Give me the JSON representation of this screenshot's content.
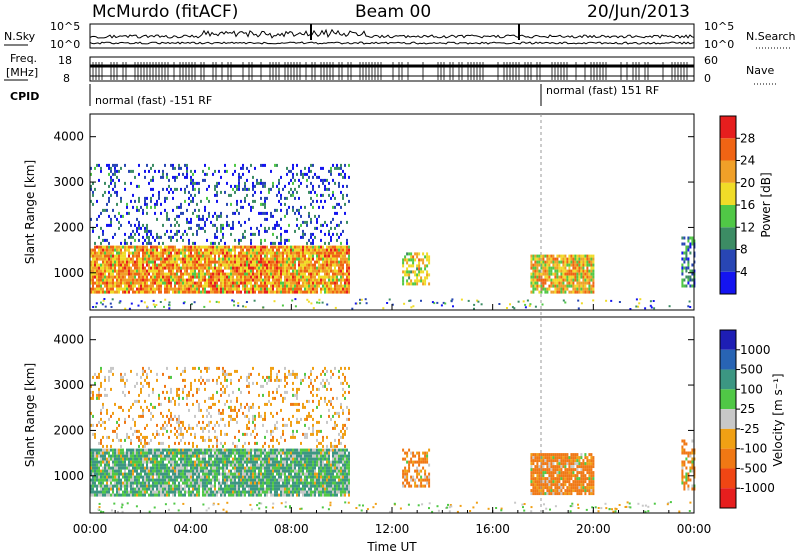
{
  "header": {
    "station": "McMurdo (fitACF)",
    "beam": "Beam 00",
    "date": "20/Jun/2013"
  },
  "noise_panel": {
    "left_label": "N.Sky",
    "right_label": "N.Search",
    "left_ticks": [
      "10^5",
      "10^0"
    ],
    "right_ticks": [
      "10^5",
      "10^0"
    ]
  },
  "freq_panel": {
    "left_label_line1": "Freq.",
    "left_label_line2": "[MHz]",
    "right_label": "Nave",
    "left_ticks": [
      "18",
      "8"
    ],
    "right_ticks": [
      "60",
      "0"
    ]
  },
  "cpid_panel": {
    "label": "CPID",
    "segment1": "normal (fast) -151 RF",
    "segment2": "normal (fast) 151 RF"
  },
  "time_axis": {
    "label": "Time UT",
    "ticks": [
      "00:00",
      "04:00",
      "08:00",
      "12:00",
      "16:00",
      "20:00",
      "00:00"
    ]
  },
  "colors": {
    "power_scale": [
      "#1414f0",
      "#2846b4",
      "#3c8c64",
      "#50c846",
      "#f0dc28",
      "#f0a028",
      "#f06414",
      "#e61e1e"
    ],
    "velocity_scale": [
      "#1e1eb4",
      "#2864b4",
      "#3c9682",
      "#50c846",
      "#c8c8c8",
      "#f0a014",
      "#f07814",
      "#f04614",
      "#e61e1e"
    ]
  },
  "chart_data": [
    {
      "type": "heatmap",
      "title": "",
      "xlabel": "Time UT",
      "ylabel": "Slant Range [km]",
      "xlim": [
        "00:00",
        "24:00"
      ],
      "ylim": [
        180,
        4500
      ],
      "y_ticks": [
        1000,
        2000,
        3000,
        4000
      ],
      "colorbar": {
        "label": "Power [dB]",
        "range": [
          0,
          32
        ],
        "ticks": [
          4,
          8,
          12,
          16,
          20,
          24,
          28
        ]
      },
      "regions": [
        {
          "t_start": 0.0,
          "t_end": 10.3,
          "r_start": 600,
          "r_end": 1600,
          "value": 22
        },
        {
          "t_start": 0.0,
          "t_end": 10.3,
          "r_start": 1650,
          "r_end": 3400,
          "value": 6
        },
        {
          "t_start": 12.4,
          "t_end": 13.5,
          "r_start": 750,
          "r_end": 1450,
          "value": 18
        },
        {
          "t_start": 17.5,
          "t_end": 20.0,
          "r_start": 600,
          "r_end": 1400,
          "value": 20
        },
        {
          "t_start": 23.5,
          "t_end": 24.0,
          "r_start": 700,
          "r_end": 1800,
          "value": 8
        }
      ]
    },
    {
      "type": "heatmap",
      "title": "",
      "xlabel": "Time UT",
      "ylabel": "Slant Range [km]",
      "xlim": [
        "00:00",
        "24:00"
      ],
      "ylim": [
        180,
        4500
      ],
      "y_ticks": [
        1000,
        2000,
        3000,
        4000
      ],
      "colorbar": {
        "label": "Velocity [m s⁻¹]",
        "ticks": [
          "1000",
          "500",
          "100",
          "25",
          "-25",
          "-100",
          "-500",
          "-1000"
        ]
      },
      "regions": [
        {
          "t_start": 0.0,
          "t_end": 10.3,
          "r_start": 600,
          "r_end": 1600,
          "value": 100
        },
        {
          "t_start": 0.0,
          "t_end": 10.3,
          "r_start": 1650,
          "r_end": 3400,
          "value": -50
        },
        {
          "t_start": 12.4,
          "t_end": 13.5,
          "r_start": 750,
          "r_end": 1600,
          "value": -150
        },
        {
          "t_start": 17.5,
          "t_end": 20.0,
          "r_start": 600,
          "r_end": 1500,
          "value": -200
        },
        {
          "t_start": 23.5,
          "t_end": 24.0,
          "r_start": 700,
          "r_end": 1800,
          "value": -100
        }
      ]
    }
  ]
}
